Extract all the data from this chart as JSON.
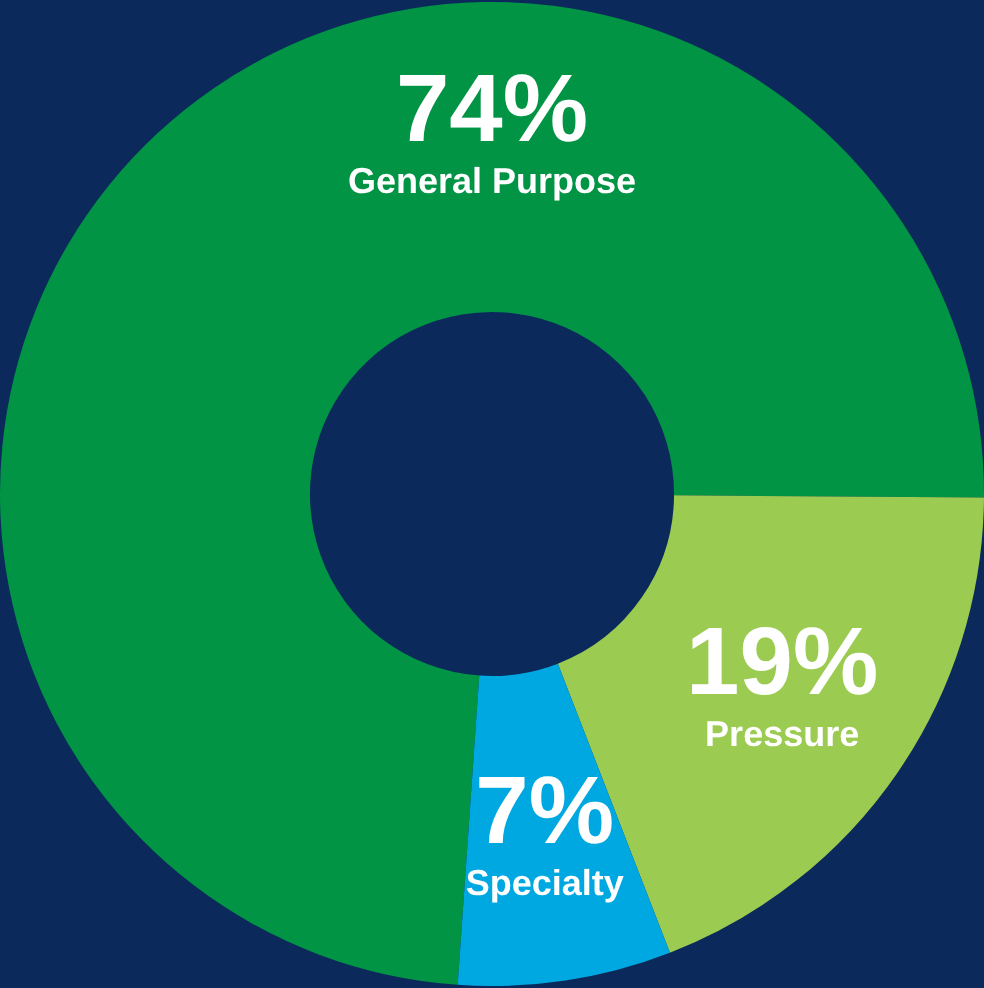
{
  "chart_data": {
    "type": "donut",
    "categories": [
      "General Purpose",
      "Pressure",
      "Specialty"
    ],
    "values": [
      74,
      19,
      7
    ],
    "value_labels": [
      "74%",
      "19%",
      "7%"
    ],
    "colors": [
      "#009444",
      "#9bcb50",
      "#00a8e1"
    ],
    "legend": false
  }
}
